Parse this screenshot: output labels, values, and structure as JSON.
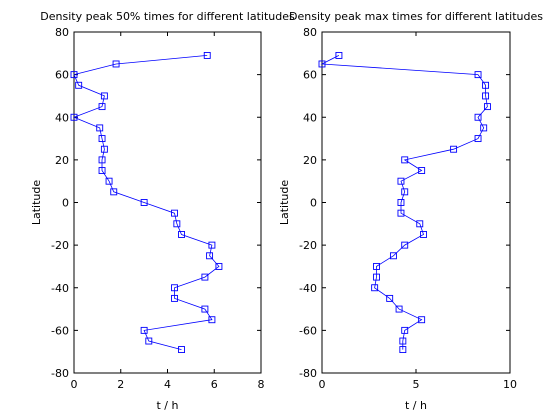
{
  "chart_data": [
    {
      "type": "line",
      "title": "Density peak 50% times for different latitudes",
      "xlabel": "t / h",
      "ylabel": "Latitude",
      "xlim": [
        0,
        8
      ],
      "ylim": [
        -80,
        80
      ],
      "xticks": [
        "0",
        "2",
        "4",
        "6",
        "8"
      ],
      "yticks": [
        "-80",
        "-60",
        "-40",
        "-20",
        "0",
        "20",
        "40",
        "60",
        "80"
      ],
      "grid": false,
      "series": [
        {
          "color": "#0000ff",
          "marker": "square",
          "x": [
            5.7,
            1.8,
            0.0,
            0.2,
            1.3,
            1.2,
            0.0,
            1.1,
            1.2,
            1.3,
            1.2,
            1.2,
            1.5,
            1.7,
            3.0,
            4.3,
            4.4,
            4.6,
            5.9,
            5.8,
            6.2,
            5.6,
            4.3,
            4.3,
            5.6,
            5.9,
            3.0,
            3.2,
            4.6
          ],
          "y": [
            69,
            65,
            60,
            55,
            50,
            45,
            40,
            35,
            30,
            25,
            20,
            15,
            10,
            5,
            0,
            -5,
            -10,
            -15,
            -20,
            -25,
            -30,
            -35,
            -40,
            -45,
            -50,
            -55,
            -60,
            -65,
            -69
          ]
        }
      ]
    },
    {
      "type": "line",
      "title": "Density peak max times for different latitudes",
      "xlabel": "t / h",
      "ylabel": "Latitude",
      "xlim": [
        0,
        10
      ],
      "ylim": [
        -80,
        80
      ],
      "xticks": [
        "0",
        "5",
        "10"
      ],
      "yticks": [
        "-80",
        "-60",
        "-40",
        "-20",
        "0",
        "20",
        "40",
        "60",
        "80"
      ],
      "grid": false,
      "series": [
        {
          "color": "#0000ff",
          "marker": "square",
          "x": [
            0.9,
            0.0,
            8.3,
            8.7,
            8.7,
            8.8,
            8.3,
            8.6,
            8.3,
            7.0,
            4.4,
            5.3,
            4.2,
            4.4,
            4.2,
            4.2,
            5.2,
            5.4,
            4.4,
            3.8,
            2.9,
            2.9,
            2.8,
            3.6,
            4.1,
            5.3,
            4.4,
            4.3,
            4.3
          ],
          "y": [
            69,
            65,
            60,
            55,
            50,
            45,
            40,
            35,
            30,
            25,
            20,
            15,
            10,
            5,
            0,
            -5,
            -10,
            -15,
            -20,
            -25,
            -30,
            -35,
            -40,
            -45,
            -50,
            -55,
            -60,
            -65,
            -69
          ]
        }
      ]
    }
  ]
}
